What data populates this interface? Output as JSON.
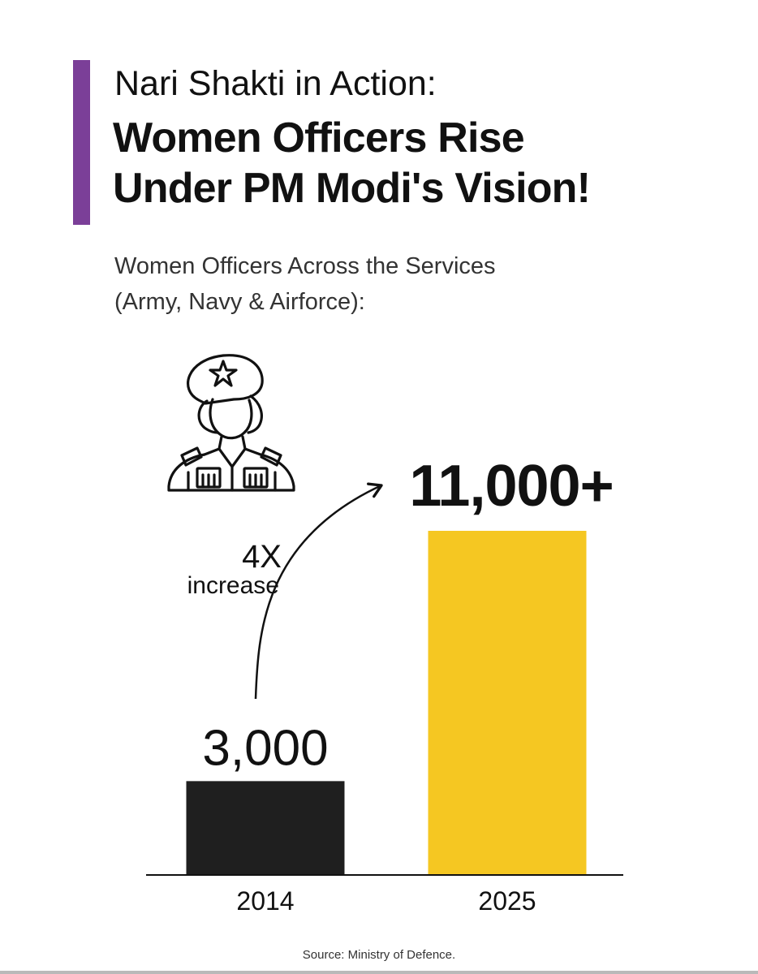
{
  "header": {
    "kicker": "Nari Shakti in Action:",
    "title_line1": "Women Officers Rise",
    "title_line2": "Under PM Modi's Vision!",
    "accent_color": "#7b3f98"
  },
  "subtitle": {
    "line1": "Women Officers Across the Services",
    "line2": "(Army, Navy & Airforce):"
  },
  "icon": {
    "name": "female-soldier-icon"
  },
  "annotation": {
    "multiplier": "4X",
    "label": "increase"
  },
  "chart_data": {
    "type": "bar",
    "categories": [
      "2014",
      "2025"
    ],
    "values": [
      3000,
      11000
    ],
    "data_labels": [
      "3,000",
      "11,000+"
    ],
    "colors": [
      "#1f1f1f",
      "#f5c722"
    ],
    "grid": false
  },
  "footer": {
    "source": "Source: Ministry of Defence."
  }
}
